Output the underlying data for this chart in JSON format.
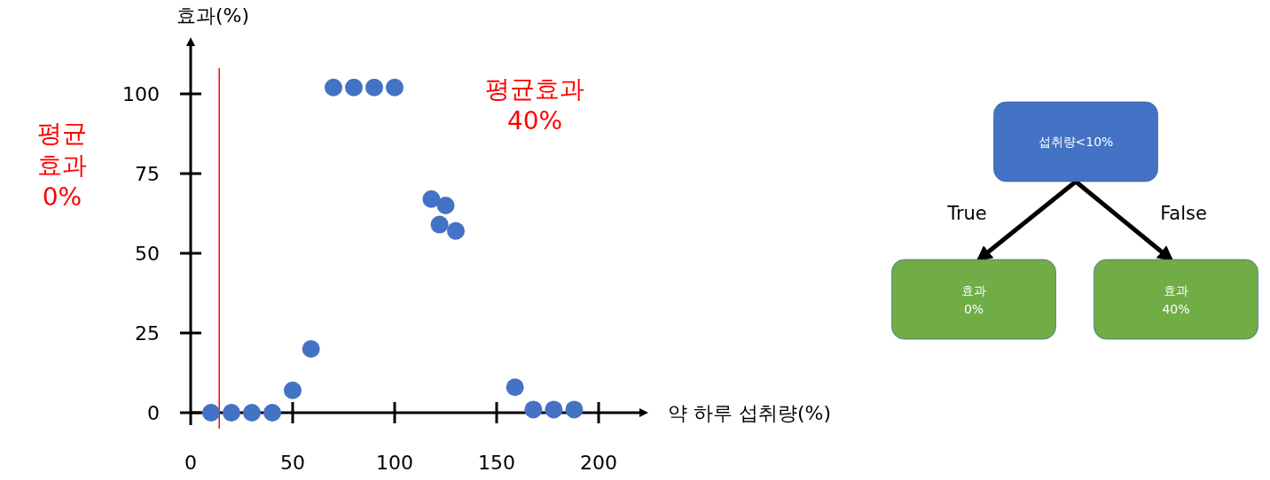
{
  "chart_data": [
    {
      "type": "scatter",
      "xlabel": "약 하루 섭취량(%)",
      "ylabel": "효과(%)",
      "xlim": [
        0,
        220
      ],
      "ylim": [
        0,
        115
      ],
      "xticks": [
        0,
        50,
        100,
        150,
        200
      ],
      "yticks": [
        0,
        25,
        50,
        75,
        100
      ],
      "marker": "circle",
      "series": [
        {
          "color": "#4472c4",
          "x": [
            10,
            20,
            30,
            40,
            50,
            59,
            70,
            80,
            90,
            100,
            118,
            125,
            122,
            130,
            159,
            168,
            178,
            188
          ],
          "values": [
            0,
            0,
            0,
            0,
            7,
            20,
            102,
            102,
            102,
            102,
            67,
            65,
            59,
            57,
            8,
            1,
            1,
            1
          ]
        }
      ],
      "ref_lines": [
        {
          "axis": "x",
          "value": 14,
          "color": "#ff0000"
        }
      ],
      "annotations": [
        "평균\n효과\n0%",
        "평균효과\n40%"
      ]
    },
    {
      "type": "other",
      "categories": [
        "섭취량<10%",
        "효과\n0%",
        "효과\n40%"
      ],
      "colors": [
        "#4472c4",
        "#70ad47",
        "#70ad47"
      ],
      "annotations": [
        "True",
        "False"
      ]
    }
  ]
}
